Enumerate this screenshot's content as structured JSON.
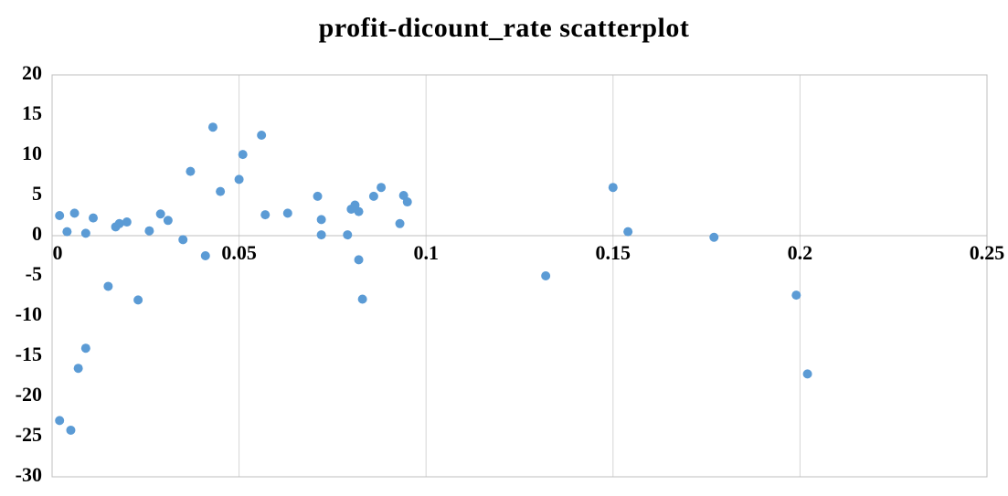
{
  "chart_data": {
    "type": "scatter",
    "title": "profit-dicount_rate scatterplot",
    "xlabel": "",
    "ylabel": "",
    "xlim": [
      0,
      0.25
    ],
    "ylim": [
      -30,
      20
    ],
    "x_ticks": [
      0,
      0.05,
      0.1,
      0.15,
      0.2,
      0.25
    ],
    "x_tick_labels": [
      "0",
      "0.05",
      "0.1",
      "0.15",
      "0.2",
      "0.25"
    ],
    "y_ticks": [
      20,
      15,
      10,
      5,
      0,
      -5,
      -10,
      -15,
      -20,
      -25,
      -30
    ],
    "grid": "vertical-only",
    "legend": "none",
    "marker_color": "#5B9BD5",
    "grid_color": "#D6D6D6",
    "axis_color": "#BFBFBF",
    "points": [
      [
        0.002,
        2.5
      ],
      [
        0.002,
        -23.0
      ],
      [
        0.004,
        0.5
      ],
      [
        0.005,
        -24.2
      ],
      [
        0.006,
        2.8
      ],
      [
        0.007,
        -16.5
      ],
      [
        0.009,
        0.3
      ],
      [
        0.009,
        -14.0
      ],
      [
        0.011,
        2.2
      ],
      [
        0.015,
        -6.3
      ],
      [
        0.017,
        1.1
      ],
      [
        0.018,
        1.5
      ],
      [
        0.02,
        1.7
      ],
      [
        0.023,
        -8.0
      ],
      [
        0.026,
        0.6
      ],
      [
        0.029,
        2.7
      ],
      [
        0.031,
        1.9
      ],
      [
        0.035,
        -0.5
      ],
      [
        0.037,
        8.0
      ],
      [
        0.041,
        -2.5
      ],
      [
        0.043,
        13.5
      ],
      [
        0.045,
        5.5
      ],
      [
        0.05,
        7.0
      ],
      [
        0.051,
        10.1
      ],
      [
        0.056,
        12.5
      ],
      [
        0.057,
        2.6
      ],
      [
        0.063,
        2.8
      ],
      [
        0.071,
        4.9
      ],
      [
        0.072,
        2.0
      ],
      [
        0.072,
        0.1
      ],
      [
        0.079,
        0.1
      ],
      [
        0.08,
        3.3
      ],
      [
        0.081,
        3.8
      ],
      [
        0.082,
        3.0
      ],
      [
        0.082,
        -3.0
      ],
      [
        0.083,
        -7.9
      ],
      [
        0.086,
        4.9
      ],
      [
        0.088,
        6.0
      ],
      [
        0.093,
        1.5
      ],
      [
        0.094,
        5.0
      ],
      [
        0.095,
        4.2
      ],
      [
        0.132,
        -5.0
      ],
      [
        0.15,
        6.0
      ],
      [
        0.154,
        0.5
      ],
      [
        0.177,
        -0.2
      ],
      [
        0.199,
        -7.4
      ],
      [
        0.202,
        -17.2
      ]
    ]
  }
}
